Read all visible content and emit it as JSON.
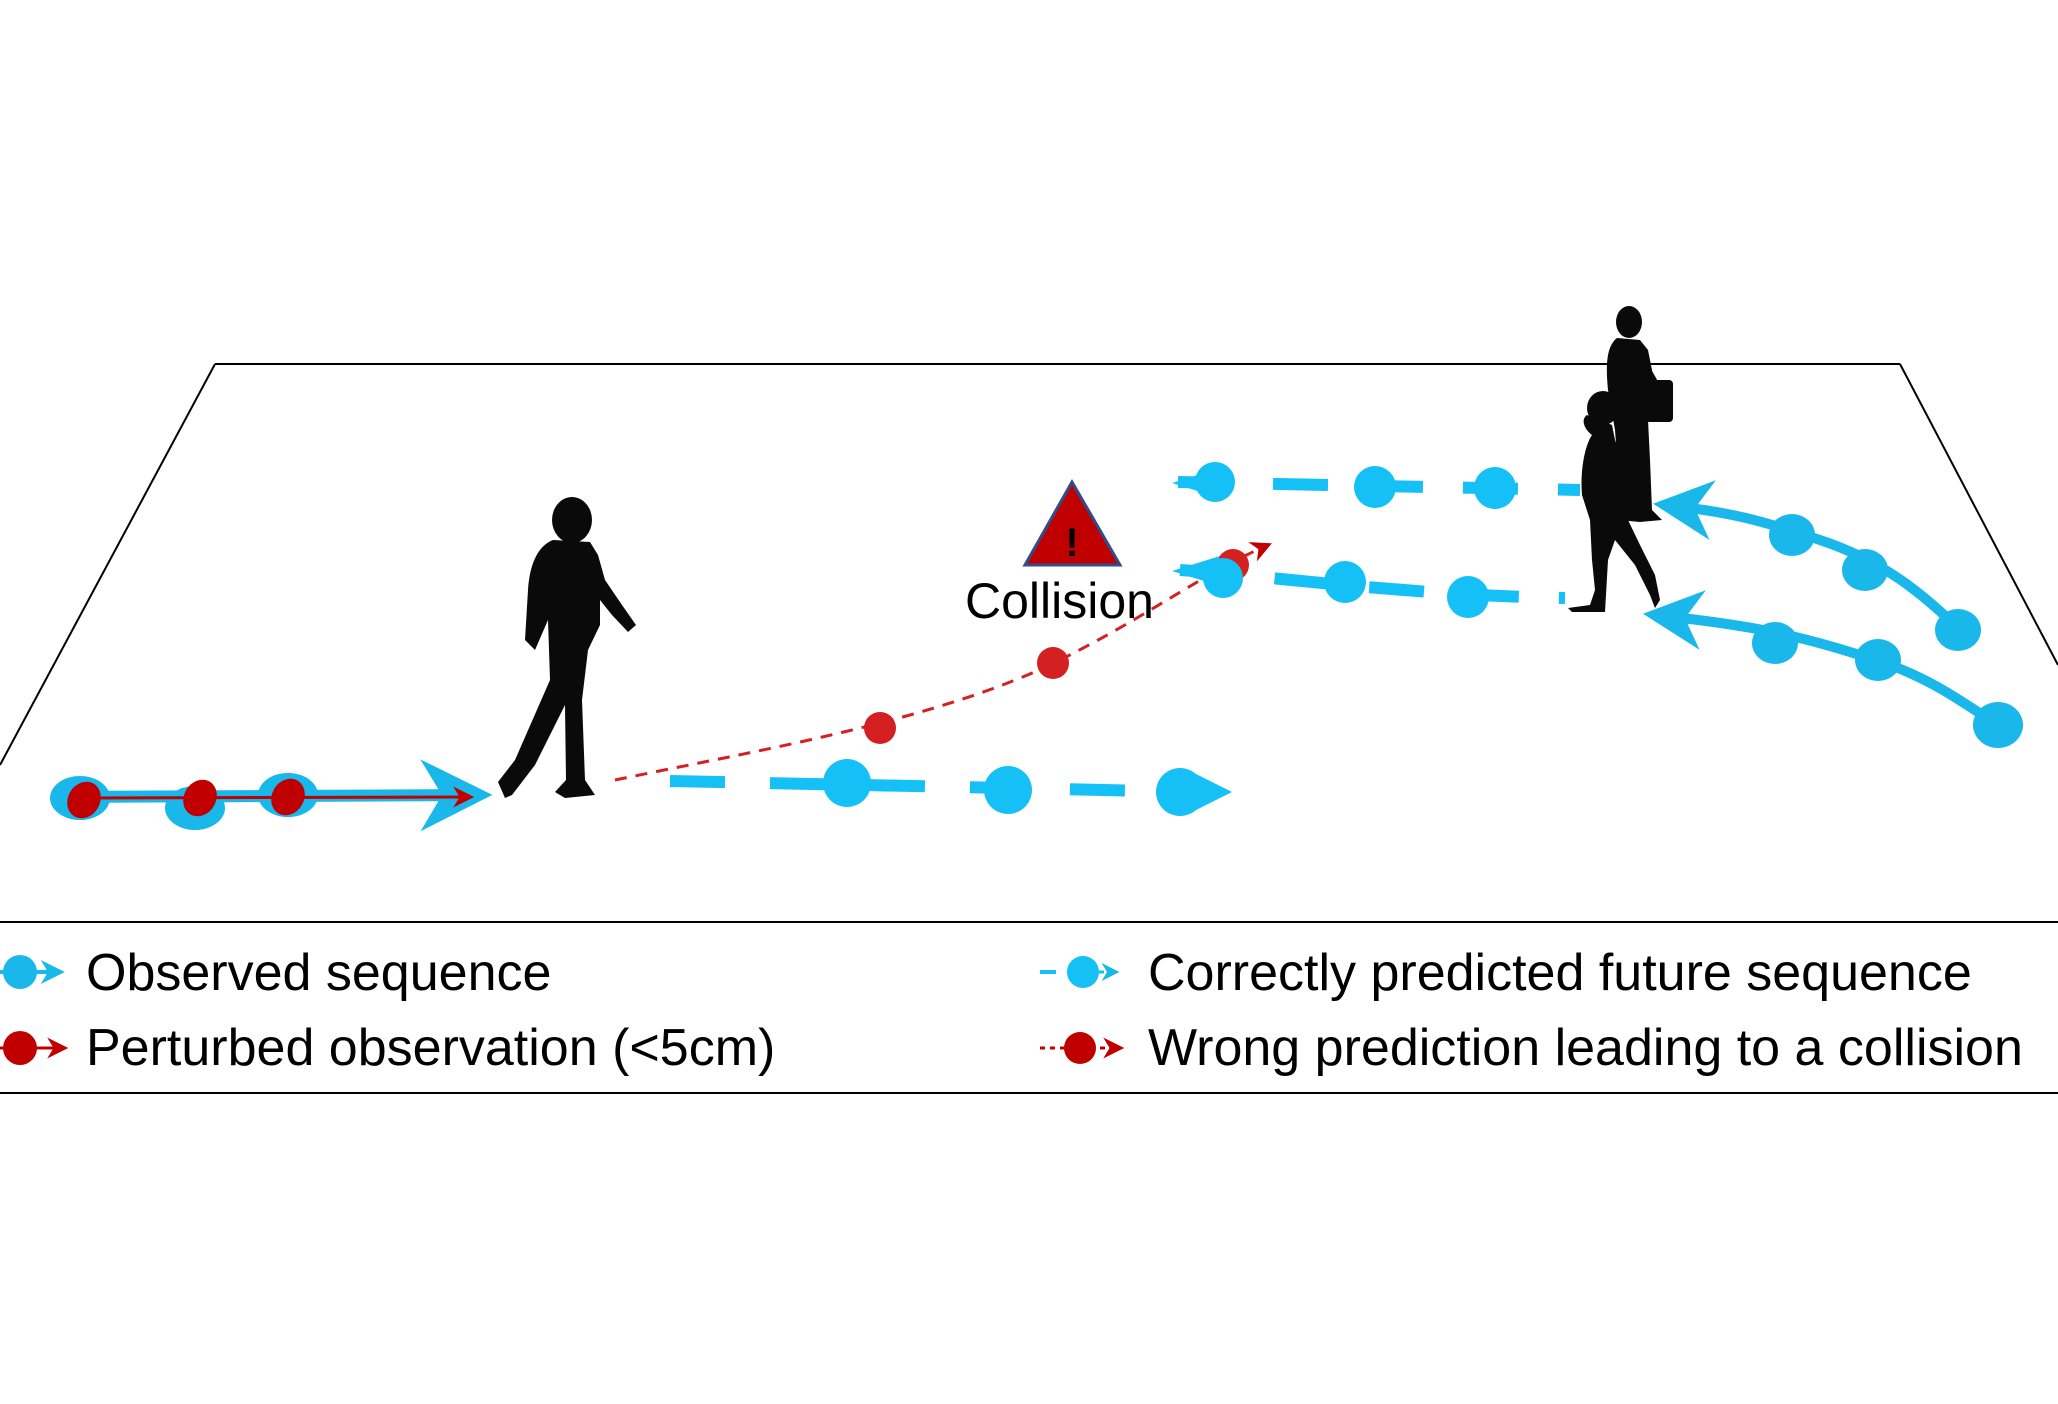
{
  "scene": {
    "collision_label": "Collision",
    "warning_glyph": "!",
    "warning_icon": "warning-triangle-icon"
  },
  "legend": {
    "items": [
      {
        "key": "observed",
        "label": "Observed sequence"
      },
      {
        "key": "perturbed",
        "label": "Perturbed observation (<5cm)"
      },
      {
        "key": "correct",
        "label": "Correctly predicted future sequence"
      },
      {
        "key": "wrong",
        "label": "Wrong prediction leading to a collision"
      }
    ]
  },
  "colors": {
    "observed_blue": "#1ab7ea",
    "predicted_blue": "#14c0f5",
    "perturbed_red": "#c00000",
    "wrong_red": "#d42020",
    "warning_fill": "#c00000",
    "warning_stroke": "#2f4d8a",
    "silhouette": "#0a0a0a"
  }
}
